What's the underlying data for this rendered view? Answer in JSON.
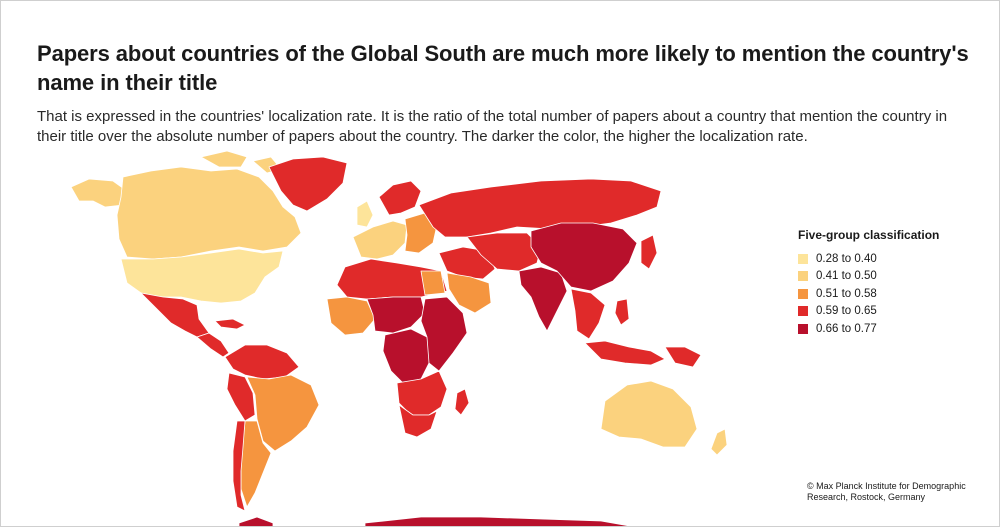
{
  "title": "Papers about countries of the Global South are much more likely to mention the country's name in their title",
  "subtitle": "That is expressed in the countries' localization rate. It is the ratio of the total number of papers about a country that mention the country in their title over the absolute number of papers about the country. The darker the color, the higher the localization rate.",
  "legend": {
    "title": "Five-group classification",
    "items": [
      {
        "label": "0.28 to 0.40",
        "color": "#fde49a"
      },
      {
        "label": "0.41 to 0.50",
        "color": "#fbd27e"
      },
      {
        "label": "0.51 to 0.58",
        "color": "#f5953f"
      },
      {
        "label": "0.59 to 0.65",
        "color": "#e02a2a"
      },
      {
        "label": "0.66 to 0.77",
        "color": "#b8102c"
      }
    ]
  },
  "credit": "© Max Planck Institute for Demographic Research, Rostock, Germany",
  "map_colors": {
    "canada": "#fbd27e",
    "usa": "#fde49a",
    "greenland": "#e02a2a",
    "alaska": "#fbd27e",
    "mexico": "#e02a2a",
    "central_america": "#e02a2a",
    "south_america_north": "#e02a2a",
    "brazil": "#f5953f",
    "argentina": "#f5953f",
    "peru": "#e02a2a",
    "west_europe": "#fbd27e",
    "uk": "#fde49a",
    "scandinavia": "#e02a2a",
    "east_europe": "#f5953f",
    "russia": "#e02a2a",
    "north_africa": "#e02a2a",
    "sahel": "#b8102c",
    "egypt": "#f5953f",
    "west_africa": "#f5953f",
    "central_africa": "#b8102c",
    "east_africa": "#b8102c",
    "southern_africa": "#e02a2a",
    "south_africa": "#e02a2a",
    "madagascar": "#e02a2a",
    "middle_east": "#e02a2a",
    "saudi": "#f5953f",
    "central_asia": "#e02a2a",
    "china": "#b8102c",
    "india": "#b8102c",
    "southeast_asia": "#e02a2a",
    "japan": "#e02a2a",
    "indonesia": "#e02a2a",
    "png": "#e02a2a",
    "australia": "#fbd27e",
    "new_zealand": "#fbd27e",
    "antarctica": "#b8102c"
  }
}
